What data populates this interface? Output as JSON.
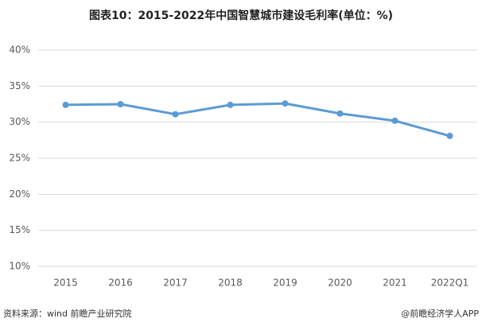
{
  "chart_data": {
    "type": "line",
    "title": "图表10：2015-2022年中国智慧城市建设毛利率(单位：%)",
    "categories": [
      "2015",
      "2016",
      "2017",
      "2018",
      "2019",
      "2020",
      "2021",
      "2022Q1"
    ],
    "series": [
      {
        "name": "毛利率",
        "color": "#5b9bd5",
        "values": [
          32.4,
          32.5,
          31.1,
          32.4,
          32.6,
          31.2,
          30.2,
          28.1
        ]
      }
    ],
    "ylim": [
      10,
      40
    ],
    "yticks": [
      {
        "value": 10,
        "label": "10%"
      },
      {
        "value": 15,
        "label": "15%"
      },
      {
        "value": 20,
        "label": "20%"
      },
      {
        "value": 25,
        "label": "25%"
      },
      {
        "value": 30,
        "label": "30%"
      },
      {
        "value": 35,
        "label": "35%"
      },
      {
        "value": 40,
        "label": "40%"
      }
    ],
    "grid": true,
    "source": "资料来源：wind 前瞻产业研究院",
    "credit": "@前瞻经济学人APP"
  }
}
